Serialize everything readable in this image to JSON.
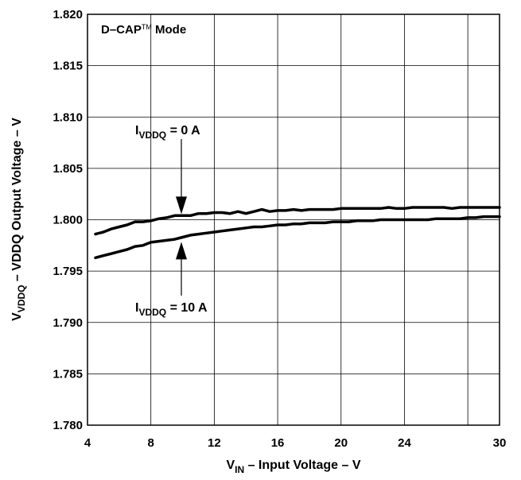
{
  "chart_data": {
    "type": "line",
    "xlabel": {
      "main": "V",
      "sub": "IN",
      "rest": " – Input Voltage – V"
    },
    "ylabel": {
      "main": "V",
      "sub": "VDDQ",
      "rest": " – VDDQ Output Voltage – V"
    },
    "xlim": [
      4,
      30
    ],
    "ylim": [
      1.78,
      1.82
    ],
    "x_ticks": [
      "4",
      "8",
      "12",
      "16",
      "20",
      "24",
      "30"
    ],
    "x_tick_values": [
      4,
      8,
      12,
      16,
      20,
      24,
      30
    ],
    "x_grid_values": [
      4,
      8,
      12,
      16,
      20,
      24,
      28,
      30
    ],
    "y_ticks": [
      "1.780",
      "1.785",
      "1.790",
      "1.795",
      "1.800",
      "1.805",
      "1.810",
      "1.815",
      "1.820"
    ],
    "y_tick_values": [
      1.78,
      1.785,
      1.79,
      1.795,
      1.8,
      1.805,
      1.81,
      1.815,
      1.82
    ],
    "grid": true,
    "mode_label": {
      "main": "D–CAP",
      "tm": "TM",
      "rest": " Mode"
    },
    "series": [
      {
        "name": "IVDDQ = 0 A",
        "label": {
          "main": "I",
          "sub": "VDDQ",
          "rest": " = 0 A"
        },
        "x": [
          4.5,
          5,
          5.5,
          6,
          6.5,
          7,
          7.5,
          8,
          8.5,
          9,
          9.5,
          10,
          10.5,
          11,
          11.5,
          12,
          12.5,
          13,
          13.5,
          14,
          14.5,
          15,
          15.5,
          16,
          16.5,
          17,
          17.5,
          18,
          18.5,
          19,
          19.5,
          20,
          20.5,
          21,
          21.5,
          22,
          22.5,
          23,
          23.5,
          24,
          24.5,
          25,
          25.5,
          26,
          26.5,
          27,
          27.5,
          28,
          28.5,
          29,
          29.5,
          30
        ],
        "y": [
          1.7986,
          1.7988,
          1.7991,
          1.7993,
          1.7995,
          1.7998,
          1.7998,
          1.7999,
          1.8001,
          1.8002,
          1.8004,
          1.8004,
          1.8004,
          1.8006,
          1.8006,
          1.8007,
          1.8007,
          1.8006,
          1.8008,
          1.8006,
          1.8008,
          1.801,
          1.8008,
          1.8009,
          1.8009,
          1.801,
          1.8009,
          1.801,
          1.801,
          1.801,
          1.801,
          1.8011,
          1.8011,
          1.8011,
          1.8011,
          1.8011,
          1.8011,
          1.8012,
          1.8011,
          1.8011,
          1.8012,
          1.8012,
          1.8012,
          1.8012,
          1.8012,
          1.8011,
          1.8012,
          1.8012,
          1.8012,
          1.8012,
          1.8012,
          1.8012
        ]
      },
      {
        "name": "IVDDQ = 10 A",
        "label": {
          "main": "I",
          "sub": "VDDQ",
          "rest": " = 10 A"
        },
        "x": [
          4.5,
          5,
          5.5,
          6,
          6.5,
          7,
          7.5,
          8,
          8.5,
          9,
          9.5,
          10,
          10.5,
          11,
          11.5,
          12,
          12.5,
          13,
          13.5,
          14,
          14.5,
          15,
          15.5,
          16,
          16.5,
          17,
          17.5,
          18,
          18.5,
          19,
          19.5,
          20,
          20.5,
          21,
          21.5,
          22,
          22.5,
          23,
          23.5,
          24,
          24.5,
          25,
          25.5,
          26,
          26.5,
          27,
          27.5,
          28,
          28.5,
          29,
          29.5,
          30
        ],
        "y": [
          1.7963,
          1.7965,
          1.7967,
          1.7969,
          1.7971,
          1.7974,
          1.7975,
          1.7978,
          1.7979,
          1.798,
          1.7981,
          1.7983,
          1.7985,
          1.7986,
          1.7987,
          1.7988,
          1.7989,
          1.799,
          1.7991,
          1.7992,
          1.7993,
          1.7993,
          1.7994,
          1.7995,
          1.7995,
          1.7996,
          1.7996,
          1.7997,
          1.7997,
          1.7997,
          1.7998,
          1.7998,
          1.7998,
          1.7999,
          1.7999,
          1.7999,
          1.8,
          1.8,
          1.8,
          1.8,
          1.8,
          1.8,
          1.8,
          1.8001,
          1.8001,
          1.8001,
          1.8001,
          1.8002,
          1.8002,
          1.8003,
          1.8003,
          1.8003
        ]
      }
    ]
  },
  "colors": {
    "line": "#000000",
    "grid": "#000000",
    "background": "#ffffff"
  }
}
